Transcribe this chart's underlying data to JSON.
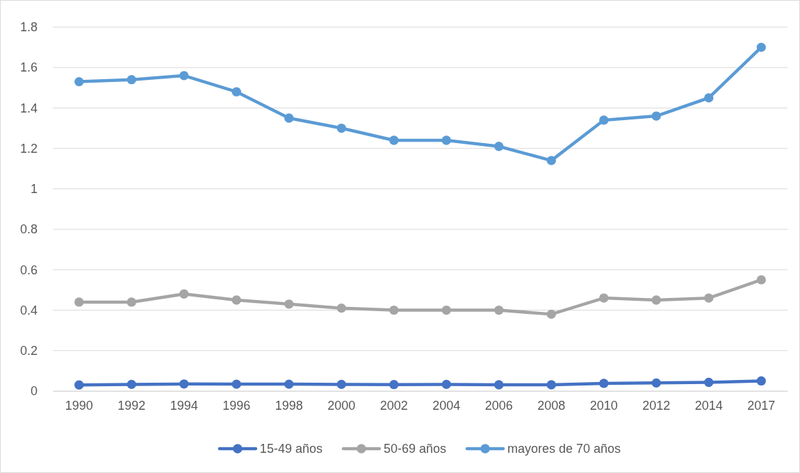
{
  "chart_data": {
    "type": "line",
    "categories": [
      "1990",
      "1992",
      "1994",
      "1996",
      "1998",
      "2000",
      "2002",
      "2004",
      "2006",
      "2008",
      "2010",
      "2012",
      "2014",
      "2017"
    ],
    "series": [
      {
        "name": "15-49 años",
        "color": "#4472c4",
        "values": [
          0.03,
          0.033,
          0.035,
          0.034,
          0.034,
          0.033,
          0.032,
          0.033,
          0.031,
          0.031,
          0.038,
          0.04,
          0.043,
          0.05
        ]
      },
      {
        "name": "50-69 años",
        "color": "#a5a5a5",
        "values": [
          0.44,
          0.44,
          0.48,
          0.45,
          0.43,
          0.41,
          0.4,
          0.4,
          0.4,
          0.38,
          0.46,
          0.45,
          0.46,
          0.55
        ]
      },
      {
        "name": "mayores de 70 años",
        "color": "#5b9bd5",
        "values": [
          1.53,
          1.54,
          1.56,
          1.48,
          1.35,
          1.3,
          1.24,
          1.24,
          1.21,
          1.14,
          1.34,
          1.36,
          1.45,
          1.7
        ]
      }
    ],
    "ylim": [
      0,
      1.8
    ],
    "yticks": [
      0,
      0.2,
      0.4,
      0.6,
      0.8,
      1,
      1.2,
      1.4,
      1.6,
      1.8
    ],
    "grid": "y",
    "legend": "bottom",
    "marker": "circle",
    "line_style": "solid"
  }
}
